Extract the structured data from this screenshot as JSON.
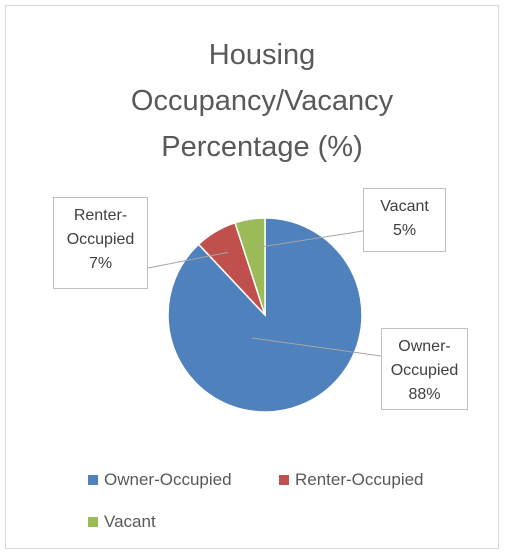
{
  "chart_data": {
    "type": "pie",
    "title": "Housing Occupancy/Vacancy Percentage (%)",
    "categories": [
      "Owner-Occupied",
      "Renter-Occupied",
      "Vacant"
    ],
    "values": [
      88,
      7,
      5
    ],
    "value_labels": [
      "88%",
      "7%",
      "5%"
    ],
    "colors": [
      "#4f81bd",
      "#c0504d",
      "#9bbb59"
    ],
    "legend": "bottom"
  }
}
